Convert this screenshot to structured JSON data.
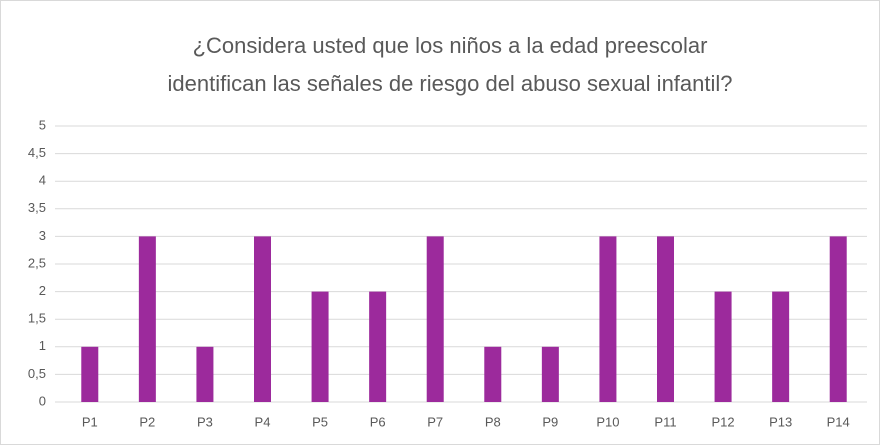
{
  "chart_data": {
    "type": "bar",
    "title": [
      "¿Considera usted que los niños a la edad preescolar",
      "identifican las señales de riesgo del abuso sexual infantil?"
    ],
    "categories": [
      "P1",
      "P2",
      "P3",
      "P4",
      "P5",
      "P6",
      "P7",
      "P8",
      "P9",
      "P10",
      "P11",
      "P12",
      "P13",
      "P14"
    ],
    "values": [
      1,
      3,
      1,
      3,
      2,
      2,
      3,
      1,
      1,
      3,
      3,
      2,
      2,
      3
    ],
    "color": "#9c2a9c",
    "ylim": [
      0,
      5
    ],
    "yticks": [
      0,
      {
        "value": 0.5,
        "label": "0,5"
      },
      1,
      {
        "value": 1.5,
        "label": "1,5"
      },
      2,
      {
        "value": 2.5,
        "label": "2,5"
      },
      3,
      {
        "value": 3.5,
        "label": "3,5"
      },
      4,
      {
        "value": 4.5,
        "label": "4,5"
      },
      5
    ],
    "grid": true
  }
}
